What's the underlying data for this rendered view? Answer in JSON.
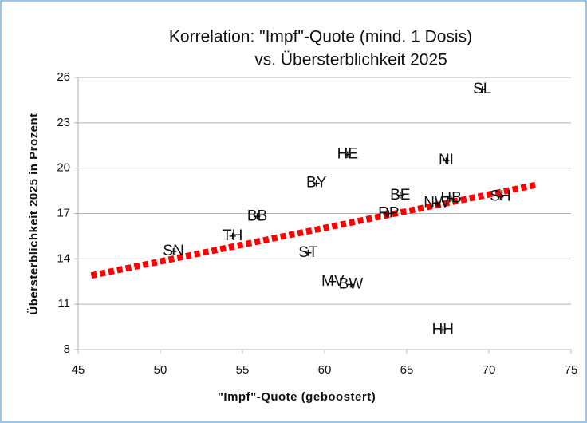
{
  "chart_data": {
    "type": "scatter",
    "title": "Korrelation: \"Impf\"-Quote (mind. 1 Dosis)",
    "subtitle": "vs. Übersterblichkeit 2025",
    "xlabel": "\"Impf\"-Quote (geboostert)",
    "ylabel": "Übersterblichkeit 2025 in Prozent",
    "labels": [
      "SL",
      "HE",
      "NI",
      "BY",
      "BE",
      "HB",
      "SH",
      "NW",
      "RP",
      "BB",
      "TH",
      "SN",
      "ST",
      "MV",
      "BW",
      "HH"
    ],
    "x": [
      69.6,
      61.4,
      67.4,
      59.5,
      64.6,
      67.7,
      70.7,
      66.8,
      63.9,
      55.9,
      54.4,
      50.8,
      59.0,
      60.5,
      61.6,
      67.2
    ],
    "values": [
      25.2,
      20.9,
      20.5,
      19.0,
      18.2,
      18.0,
      18.1,
      17.7,
      17.0,
      16.8,
      15.5,
      14.5,
      14.4,
      12.5,
      12.3,
      9.3
    ],
    "color": "#111111",
    "trendline": {
      "x": [
        45.8,
        72.9
      ],
      "values": [
        12.9,
        18.9
      ],
      "color": "#ff0000"
    },
    "xlim": [
      45,
      75
    ],
    "xticks": [
      45,
      50,
      55,
      60,
      65,
      70,
      75
    ],
    "ylim": [
      8,
      26
    ],
    "yticks": [
      8,
      11,
      14,
      17,
      20,
      23,
      26
    ],
    "grid": true
  }
}
